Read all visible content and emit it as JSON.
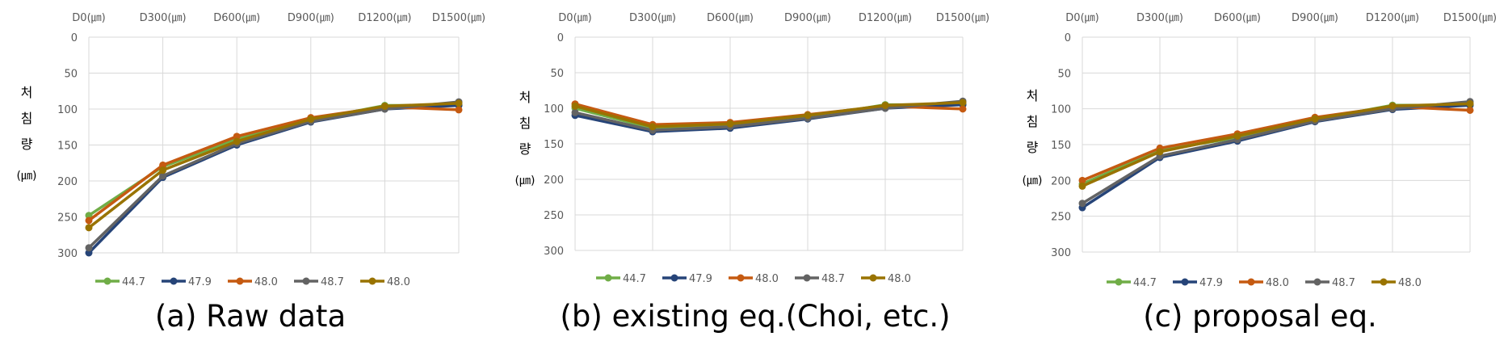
{
  "chart_data": [
    {
      "type": "line",
      "caption": "(a) Raw data",
      "ylabel": [
        "처",
        "침",
        "량",
        "(㎛)"
      ],
      "categories": [
        "D0(㎛)",
        "D300(㎛)",
        "D600(㎛)",
        "D900(㎛)",
        "D1200(㎛)",
        "D1500(㎛)"
      ],
      "x_axis_position": "top",
      "y_reversed": true,
      "ylim": [
        0,
        300
      ],
      "yticks": [
        "0",
        "50",
        "100",
        "150",
        "200",
        "250",
        "300"
      ],
      "grid": true,
      "legend_position": "bottom-left",
      "series": [
        {
          "name": "44.7",
          "color": "#70ad47",
          "values": [
            248,
            180,
            142,
            115,
            95,
            95
          ]
        },
        {
          "name": "47.9",
          "color": "#264478",
          "values": [
            300,
            195,
            150,
            118,
            100,
            95
          ]
        },
        {
          "name": "48.0",
          "color": "#c55a11",
          "values": [
            255,
            178,
            138,
            112,
            97,
            101
          ]
        },
        {
          "name": "48.7",
          "color": "#636363",
          "values": [
            293,
            193,
            148,
            117,
            100,
            90
          ]
        },
        {
          "name": "48.0",
          "color": "#997300",
          "values": [
            265,
            185,
            145,
            114,
            96,
            92
          ]
        }
      ]
    },
    {
      "type": "line",
      "caption": "(b) existing eq.(Choi, etc.)",
      "ylabel": [
        "처",
        "침",
        "량",
        "(㎛)"
      ],
      "categories": [
        "D0(㎛)",
        "D300(㎛)",
        "D600(㎛)",
        "D900(㎛)",
        "D1200(㎛)",
        "D1500(㎛)"
      ],
      "x_axis_position": "top",
      "y_reversed": true,
      "ylim": [
        0,
        300
      ],
      "yticks": [
        "0",
        "50",
        "100",
        "150",
        "200",
        "250",
        "300"
      ],
      "grid": true,
      "legend_position": "bottom-left",
      "series": [
        {
          "name": "44.7",
          "color": "#70ad47",
          "values": [
            100,
            128,
            125,
            113,
            95,
            95
          ]
        },
        {
          "name": "47.9",
          "color": "#264478",
          "values": [
            110,
            133,
            128,
            115,
            100,
            95
          ]
        },
        {
          "name": "48.0",
          "color": "#c55a11",
          "values": [
            94,
            123,
            120,
            109,
            97,
            101
          ]
        },
        {
          "name": "48.7",
          "color": "#636363",
          "values": [
            106,
            131,
            126,
            114,
            100,
            90
          ]
        },
        {
          "name": "48.0",
          "color": "#997300",
          "values": [
            97,
            126,
            122,
            110,
            96,
            92
          ]
        }
      ]
    },
    {
      "type": "line",
      "caption": "(c) proposal eq.",
      "ylabel": [
        "처",
        "침",
        "량",
        "(㎛)"
      ],
      "categories": [
        "D0(㎛)",
        "D300(㎛)",
        "D600(㎛)",
        "D900(㎛)",
        "D1200(㎛)",
        "D1500(㎛)"
      ],
      "x_axis_position": "top",
      "y_reversed": true,
      "ylim": [
        0,
        300
      ],
      "yticks": [
        "0",
        "50",
        "100",
        "150",
        "200",
        "250",
        "300"
      ],
      "grid": true,
      "legend_position": "bottom-left",
      "series": [
        {
          "name": "44.7",
          "color": "#70ad47",
          "values": [
            205,
            158,
            140,
            115,
            95,
            95
          ]
        },
        {
          "name": "47.9",
          "color": "#264478",
          "values": [
            238,
            168,
            145,
            118,
            101,
            95
          ]
        },
        {
          "name": "48.0",
          "color": "#c55a11",
          "values": [
            200,
            155,
            135,
            112,
            97,
            102
          ]
        },
        {
          "name": "48.7",
          "color": "#636363",
          "values": [
            232,
            166,
            143,
            117,
            100,
            90
          ]
        },
        {
          "name": "48.0",
          "color": "#997300",
          "values": [
            208,
            160,
            138,
            114,
            96,
            93
          ]
        }
      ]
    }
  ]
}
